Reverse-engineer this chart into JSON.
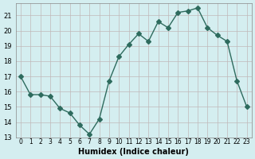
{
  "x": [
    0,
    1,
    2,
    3,
    4,
    5,
    6,
    7,
    8,
    9,
    10,
    11,
    12,
    13,
    14,
    15,
    16,
    17,
    18,
    19,
    20,
    21,
    22,
    23
  ],
  "y": [
    17.0,
    15.8,
    15.8,
    15.7,
    14.9,
    14.6,
    13.8,
    13.2,
    14.2,
    16.7,
    18.3,
    19.1,
    19.8,
    19.3,
    20.6,
    20.2,
    21.2,
    21.3,
    21.5,
    20.2,
    19.7,
    19.3,
    16.7,
    15.0
  ],
  "xlim": [
    -0.5,
    23.5
  ],
  "ylim": [
    13,
    21.8
  ],
  "yticks": [
    13,
    14,
    15,
    16,
    17,
    18,
    19,
    20,
    21
  ],
  "xtick_labels": [
    "0",
    "1",
    "2",
    "3",
    "4",
    "5",
    "6",
    "7",
    "8",
    "9",
    "10",
    "11",
    "12",
    "13",
    "14",
    "15",
    "16",
    "17",
    "18",
    "19",
    "20",
    "21",
    "22",
    "23"
  ],
  "xlabel": "Humidex (Indice chaleur)",
  "line_color": "#2e6b5e",
  "marker": "D",
  "marker_size": 3,
  "bg_color": "#d4eef0",
  "grid_color": "#c0b8b8"
}
